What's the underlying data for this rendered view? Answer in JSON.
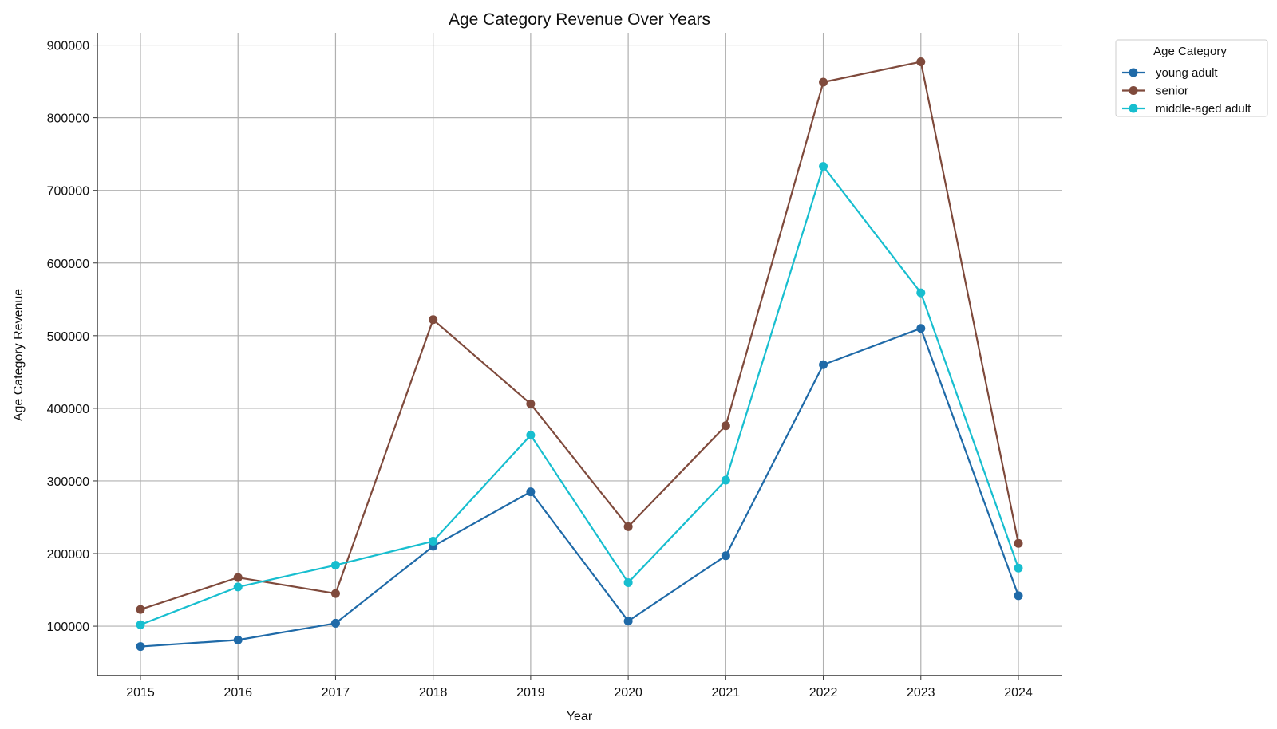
{
  "chart_data": {
    "type": "line",
    "title": "Age Category Revenue Over Years",
    "xlabel": "Year",
    "ylabel": "Age Category Revenue",
    "x": [
      2015,
      2016,
      2017,
      2018,
      2019,
      2020,
      2021,
      2022,
      2023,
      2024
    ],
    "x_tick_labels": [
      "2015",
      "2016",
      "2017",
      "2018",
      "2019",
      "2020",
      "2021",
      "2022",
      "2023",
      "2024"
    ],
    "y_ticks": [
      100000,
      200000,
      300000,
      400000,
      500000,
      600000,
      700000,
      800000,
      900000
    ],
    "y_tick_labels": [
      "100000",
      "200000",
      "300000",
      "400000",
      "500000",
      "600000",
      "700000",
      "800000",
      "900000"
    ],
    "ylim": [
      32000,
      916000
    ],
    "grid": true,
    "legend": {
      "title": "Age Category",
      "placement": "outside-top-right"
    },
    "series": [
      {
        "name": "young adult",
        "color": "#1f6aa8",
        "values": [
          72000,
          81000,
          104000,
          210000,
          285000,
          107000,
          197000,
          460000,
          510000,
          142000
        ]
      },
      {
        "name": "senior",
        "color": "#7f4a3c",
        "values": [
          123000,
          167000,
          145000,
          522000,
          406000,
          237000,
          376000,
          849000,
          877000,
          214000
        ]
      },
      {
        "name": "middle-aged adult",
        "color": "#17becf",
        "values": [
          102000,
          154000,
          184000,
          217000,
          363000,
          160000,
          301000,
          733000,
          559000,
          180000
        ]
      }
    ]
  }
}
